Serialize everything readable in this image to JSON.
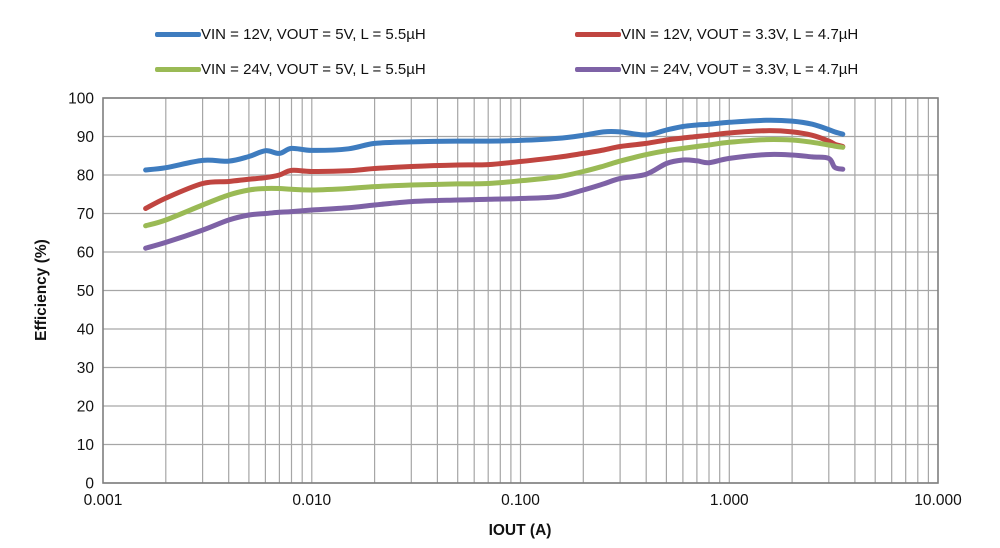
{
  "chart_data": {
    "type": "line",
    "x_scale": "log",
    "title": "",
    "xlabel": "IOUT (A)",
    "ylabel": "Efficiency (%)",
    "xlim": [
      0.001,
      10
    ],
    "ylim": [
      0,
      100
    ],
    "grid": true,
    "legend_position": "top",
    "x_tick_values": [
      0.001,
      0.01,
      0.1,
      1,
      10
    ],
    "x_tick_labels": [
      "0.001",
      "0.010",
      "0.100",
      "1.000",
      "10.000"
    ],
    "y_ticks": [
      0,
      10,
      20,
      30,
      40,
      50,
      60,
      70,
      80,
      90,
      100
    ],
    "x": [
      0.0016,
      0.002,
      0.003,
      0.004,
      0.005,
      0.006,
      0.007,
      0.008,
      0.01,
      0.015,
      0.02,
      0.03,
      0.05,
      0.07,
      0.1,
      0.15,
      0.2,
      0.25,
      0.3,
      0.4,
      0.5,
      0.6,
      0.7,
      0.8,
      1.0,
      1.5,
      2.0,
      2.5,
      3.0,
      3.2,
      3.5
    ],
    "series": [
      {
        "name": "VIN = 12V, VOUT = 5V, L = 5.5µH",
        "color": "#3e7cbf",
        "values": [
          81.3,
          81.9,
          83.8,
          83.6,
          84.8,
          86.3,
          85.6,
          86.9,
          86.4,
          86.8,
          88.2,
          88.6,
          88.8,
          88.8,
          89.0,
          89.5,
          90.3,
          91.2,
          91.2,
          90.4,
          91.7,
          92.6,
          93.0,
          93.2,
          93.7,
          94.2,
          94.0,
          93.2,
          91.8,
          91.2,
          90.6
        ]
      },
      {
        "name": "VIN = 12V, VOUT = 3.3V, L = 4.7µH",
        "color": "#c04540",
        "values": [
          71.3,
          74.0,
          77.8,
          78.3,
          78.9,
          79.3,
          80.0,
          81.2,
          80.9,
          81.1,
          81.7,
          82.2,
          82.6,
          82.7,
          83.5,
          84.6,
          85.6,
          86.5,
          87.4,
          88.2,
          89.1,
          89.6,
          90.0,
          90.3,
          90.9,
          91.5,
          91.2,
          90.3,
          88.8,
          88.0,
          87.4
        ]
      },
      {
        "name": "VIN = 24V, VOUT = 5V, L = 5.5µH",
        "color": "#9aba55",
        "values": [
          66.8,
          68.3,
          72.2,
          74.8,
          76.1,
          76.5,
          76.5,
          76.3,
          76.1,
          76.5,
          77.0,
          77.4,
          77.7,
          77.8,
          78.5,
          79.5,
          80.9,
          82.3,
          83.6,
          85.3,
          86.3,
          86.9,
          87.4,
          87.8,
          88.5,
          89.2,
          89.1,
          88.5,
          87.8,
          87.5,
          87.2
        ]
      },
      {
        "name": "VIN = 24V, VOUT = 3.3V, L = 4.7µH",
        "color": "#7e62a6",
        "values": [
          61.0,
          62.5,
          65.7,
          68.3,
          69.6,
          70.0,
          70.3,
          70.5,
          70.9,
          71.5,
          72.2,
          73.1,
          73.5,
          73.7,
          73.9,
          74.4,
          76.1,
          77.7,
          79.1,
          80.2,
          83.0,
          83.9,
          83.7,
          83.2,
          84.3,
          85.3,
          85.2,
          84.7,
          84.3,
          82.0,
          81.5
        ]
      }
    ]
  }
}
